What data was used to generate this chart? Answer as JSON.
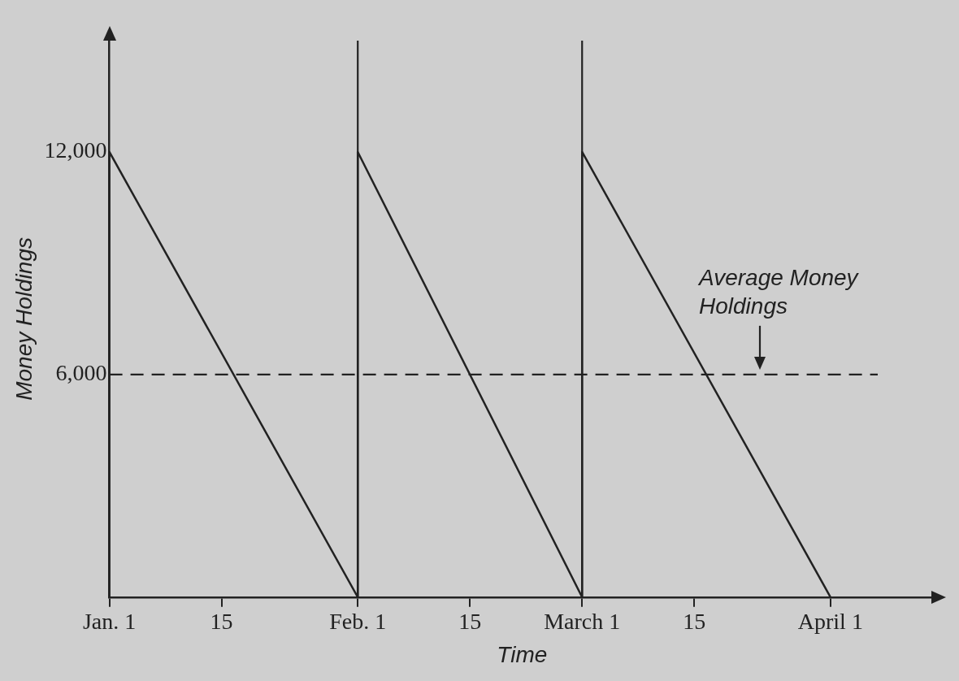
{
  "chart_data": {
    "type": "line",
    "xlabel": "Time",
    "ylabel": "Money Holdings",
    "x": [
      "--01-01",
      "--01-01",
      "--02-01",
      "--02-01",
      "--03-01",
      "--03-01",
      "--04-01"
    ],
    "series": [
      {
        "color": "#222222",
        "values": [
          0,
          12000,
          0,
          12000,
          0,
          12000,
          0
        ]
      }
    ],
    "xlim": [
      "--01-01",
      "--04-14"
    ],
    "ylim": [
      0,
      15000
    ],
    "xticks": [
      {
        "value": "--01-01",
        "label": "Jan. 1"
      },
      {
        "value": "--01-15",
        "label": "15"
      },
      {
        "value": "--02-01",
        "label": "Feb. 1"
      },
      {
        "value": "--02-15",
        "label": "15"
      },
      {
        "value": "--03-01",
        "label": "March 1"
      },
      {
        "value": "--03-15",
        "label": "15"
      },
      {
        "value": "--04-01",
        "label": "April 1"
      }
    ],
    "yticks": [
      {
        "value": 6000,
        "label": "6,000"
      },
      {
        "value": 12000,
        "label": "12,000"
      }
    ],
    "ref_lines": [
      {
        "axis": "y",
        "value": 6000,
        "label": "Average Money Holdings",
        "line_style": "dashed",
        "color": "#222222"
      },
      {
        "axis": "x",
        "value": "--02-01",
        "color": "#222222"
      },
      {
        "axis": "x",
        "value": "--03-01",
        "color": "#222222"
      }
    ],
    "grid": false,
    "legend": false,
    "marker": "none",
    "line_style": "solid"
  }
}
